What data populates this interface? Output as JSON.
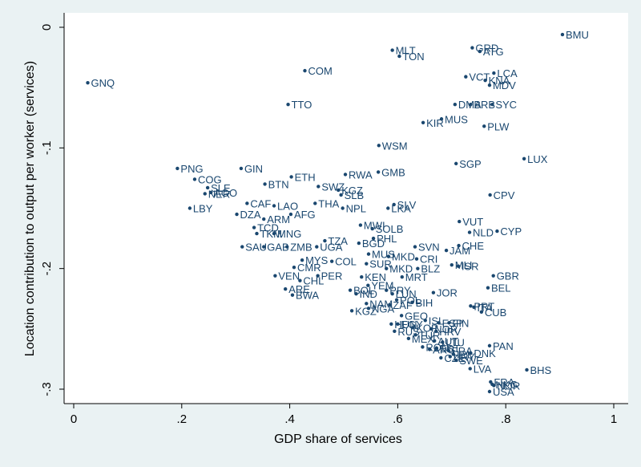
{
  "chart_data": {
    "type": "scatter",
    "title": "",
    "xlabel": "GDP share of services",
    "ylabel": "Location contribution to output per worker (services)",
    "xlim": [
      0,
      1
    ],
    "ylim": [
      -0.3,
      0
    ],
    "xticks": [
      0,
      0.2,
      0.4,
      0.6,
      0.8,
      1
    ],
    "xtick_labels": [
      "0",
      ".2",
      ".4",
      ".6",
      ".8",
      "1"
    ],
    "yticks": [
      0,
      -0.1,
      -0.2,
      -0.3
    ],
    "ytick_labels": [
      "0",
      "-.1",
      "-.2",
      "-.3"
    ],
    "grid": false,
    "colors": {
      "background": "#eaf2f3",
      "plot_area": "#ffffff",
      "marker": "#1a476f"
    },
    "points": [
      {
        "label": "BMU",
        "x": 0.905,
        "y": -0.006
      },
      {
        "label": "GRD",
        "x": 0.738,
        "y": -0.017
      },
      {
        "label": "ATG",
        "x": 0.752,
        "y": -0.02
      },
      {
        "label": "MLT",
        "x": 0.59,
        "y": -0.019
      },
      {
        "label": "TON",
        "x": 0.603,
        "y": -0.024
      },
      {
        "label": "LCA",
        "x": 0.778,
        "y": -0.038
      },
      {
        "label": "VCT",
        "x": 0.726,
        "y": -0.041
      },
      {
        "label": "KNA",
        "x": 0.762,
        "y": -0.044
      },
      {
        "label": "MDV",
        "x": 0.77,
        "y": -0.048
      },
      {
        "label": "COM",
        "x": 0.428,
        "y": -0.036
      },
      {
        "label": "GNQ",
        "x": 0.026,
        "y": -0.046
      },
      {
        "label": "TTO",
        "x": 0.397,
        "y": -0.064
      },
      {
        "label": "DMA",
        "x": 0.706,
        "y": -0.064
      },
      {
        "label": "BRB",
        "x": 0.735,
        "y": -0.064
      },
      {
        "label": "SYC",
        "x": 0.775,
        "y": -0.064
      },
      {
        "label": "MUS",
        "x": 0.681,
        "y": -0.076
      },
      {
        "label": "KIR",
        "x": 0.647,
        "y": -0.079
      },
      {
        "label": "PLW",
        "x": 0.76,
        "y": -0.082
      },
      {
        "label": "WSM",
        "x": 0.565,
        "y": -0.098
      },
      {
        "label": "SGP",
        "x": 0.708,
        "y": -0.113
      },
      {
        "label": "LUX",
        "x": 0.834,
        "y": -0.109
      },
      {
        "label": "PNG",
        "x": 0.192,
        "y": -0.117
      },
      {
        "label": "GIN",
        "x": 0.31,
        "y": -0.117
      },
      {
        "label": "ETH",
        "x": 0.403,
        "y": -0.124
      },
      {
        "label": "RWA",
        "x": 0.503,
        "y": -0.122
      },
      {
        "label": "GMB",
        "x": 0.564,
        "y": -0.12
      },
      {
        "label": "COG",
        "x": 0.224,
        "y": -0.126
      },
      {
        "label": "BTN",
        "x": 0.354,
        "y": -0.13
      },
      {
        "label": "SWZ",
        "x": 0.453,
        "y": -0.132
      },
      {
        "label": "KGZ",
        "x": 0.49,
        "y": -0.135
      },
      {
        "label": "SLE",
        "x": 0.248,
        "y": -0.133
      },
      {
        "label": "AGO",
        "x": 0.254,
        "y": -0.137
      },
      {
        "label": "NER",
        "x": 0.243,
        "y": -0.138
      },
      {
        "label": "SLB",
        "x": 0.495,
        "y": -0.139
      },
      {
        "label": "CPV",
        "x": 0.771,
        "y": -0.139
      },
      {
        "label": "CAF",
        "x": 0.321,
        "y": -0.146
      },
      {
        "label": "THA",
        "x": 0.447,
        "y": -0.146
      },
      {
        "label": "SLV",
        "x": 0.593,
        "y": -0.147
      },
      {
        "label": "LAO",
        "x": 0.371,
        "y": -0.148
      },
      {
        "label": "NPL",
        "x": 0.498,
        "y": -0.15
      },
      {
        "label": "LKA",
        "x": 0.582,
        "y": -0.15
      },
      {
        "label": "LBY",
        "x": 0.215,
        "y": -0.15
      },
      {
        "label": "DZA",
        "x": 0.302,
        "y": -0.155
      },
      {
        "label": "AFG",
        "x": 0.402,
        "y": -0.155
      },
      {
        "label": "ARM",
        "x": 0.352,
        "y": -0.159
      },
      {
        "label": "VUT",
        "x": 0.714,
        "y": -0.161
      },
      {
        "label": "MWI",
        "x": 0.531,
        "y": -0.164
      },
      {
        "label": "TCD",
        "x": 0.334,
        "y": -0.166
      },
      {
        "label": "SOLB",
        "x": 0.553,
        "y": -0.167
      },
      {
        "label": "CYP",
        "x": 0.784,
        "y": -0.169
      },
      {
        "label": "NLD",
        "x": 0.733,
        "y": -0.17
      },
      {
        "label": "TKM",
        "x": 0.339,
        "y": -0.171
      },
      {
        "label": "MNG",
        "x": 0.371,
        "y": -0.171
      },
      {
        "label": "PHL",
        "x": 0.555,
        "y": -0.175
      },
      {
        "label": "TZA",
        "x": 0.465,
        "y": -0.177
      },
      {
        "label": "BGD",
        "x": 0.528,
        "y": -0.179
      },
      {
        "label": "CHE",
        "x": 0.713,
        "y": -0.181
      },
      {
        "label": "SAU",
        "x": 0.312,
        "y": -0.182
      },
      {
        "label": "GAB",
        "x": 0.352,
        "y": -0.182
      },
      {
        "label": "ZMB",
        "x": 0.395,
        "y": -0.182
      },
      {
        "label": "UGA",
        "x": 0.45,
        "y": -0.182
      },
      {
        "label": "SVN",
        "x": 0.632,
        "y": -0.182
      },
      {
        "label": "JAM",
        "x": 0.69,
        "y": -0.185
      },
      {
        "label": "MUS",
        "x": 0.546,
        "y": -0.188
      },
      {
        "label": "MKD",
        "x": 0.583,
        "y": -0.19
      },
      {
        "label": "CRI",
        "x": 0.635,
        "y": -0.192
      },
      {
        "label": "MYS",
        "x": 0.423,
        "y": -0.193
      },
      {
        "label": "COL",
        "x": 0.478,
        "y": -0.194
      },
      {
        "label": "SUR",
        "x": 0.542,
        "y": -0.196
      },
      {
        "label": "MLI",
        "x": 0.7,
        "y": -0.197
      },
      {
        "label": "ISR",
        "x": 0.712,
        "y": -0.198
      },
      {
        "label": "CMR",
        "x": 0.408,
        "y": -0.199
      },
      {
        "label": "MKD",
        "x": 0.579,
        "y": -0.2
      },
      {
        "label": "BLZ",
        "x": 0.637,
        "y": -0.2
      },
      {
        "label": "GBR",
        "x": 0.777,
        "y": -0.206
      },
      {
        "label": "VEN",
        "x": 0.373,
        "y": -0.206
      },
      {
        "label": "PER",
        "x": 0.452,
        "y": -0.206
      },
      {
        "label": "KEN",
        "x": 0.533,
        "y": -0.207
      },
      {
        "label": "MRT",
        "x": 0.608,
        "y": -0.207
      },
      {
        "label": "CHL",
        "x": 0.419,
        "y": -0.21
      },
      {
        "label": "YEM",
        "x": 0.545,
        "y": -0.214
      },
      {
        "label": "BEL",
        "x": 0.767,
        "y": -0.216
      },
      {
        "label": "ARE",
        "x": 0.392,
        "y": -0.217
      },
      {
        "label": "BOL",
        "x": 0.512,
        "y": -0.218
      },
      {
        "label": "PRY",
        "x": 0.579,
        "y": -0.218
      },
      {
        "label": "JOR",
        "x": 0.666,
        "y": -0.22
      },
      {
        "label": "BWA",
        "x": 0.405,
        "y": -0.222
      },
      {
        "label": "IND",
        "x": 0.523,
        "y": -0.221
      },
      {
        "label": "LUN",
        "x": 0.59,
        "y": -0.221
      },
      {
        "label": "POL",
        "x": 0.598,
        "y": -0.226
      },
      {
        "label": "BIH",
        "x": 0.627,
        "y": -0.228
      },
      {
        "label": "NAM",
        "x": 0.542,
        "y": -0.229
      },
      {
        "label": "ZAF",
        "x": 0.585,
        "y": -0.23
      },
      {
        "label": "NGA",
        "x": 0.546,
        "y": -0.233
      },
      {
        "label": "PRT",
        "x": 0.735,
        "y": -0.231
      },
      {
        "label": "ITA",
        "x": 0.741,
        "y": -0.232
      },
      {
        "label": "KGZ",
        "x": 0.515,
        "y": -0.235
      },
      {
        "label": "CUB",
        "x": 0.755,
        "y": -0.236
      },
      {
        "label": "GEO",
        "x": 0.607,
        "y": -0.239
      },
      {
        "label": "ISL",
        "x": 0.651,
        "y": -0.243
      },
      {
        "label": "ESP",
        "x": 0.676,
        "y": -0.245
      },
      {
        "label": "FIN",
        "x": 0.695,
        "y": -0.245
      },
      {
        "label": "HUN",
        "x": 0.588,
        "y": -0.246
      },
      {
        "label": "EGY",
        "x": 0.6,
        "y": -0.246
      },
      {
        "label": "KOR",
        "x": 0.628,
        "y": -0.249
      },
      {
        "label": "NOR",
        "x": 0.662,
        "y": -0.25
      },
      {
        "label": "HRV",
        "x": 0.671,
        "y": -0.252
      },
      {
        "label": "RUS",
        "x": 0.594,
        "y": -0.252
      },
      {
        "label": "TUR",
        "x": 0.633,
        "y": -0.255
      },
      {
        "label": "MEX",
        "x": 0.62,
        "y": -0.258
      },
      {
        "label": "AUT",
        "x": 0.668,
        "y": -0.26
      },
      {
        "label": "LTU",
        "x": 0.683,
        "y": -0.261
      },
      {
        "label": "ROU",
        "x": 0.646,
        "y": -0.265
      },
      {
        "label": "EST",
        "x": 0.672,
        "y": -0.266
      },
      {
        "label": "ARG",
        "x": 0.659,
        "y": -0.267
      },
      {
        "label": "FRA",
        "x": 0.694,
        "y": -0.268
      },
      {
        "label": "DNK",
        "x": 0.735,
        "y": -0.27
      },
      {
        "label": "PAN",
        "x": 0.77,
        "y": -0.264
      },
      {
        "label": "IRL",
        "x": 0.703,
        "y": -0.271
      },
      {
        "label": "URY",
        "x": 0.697,
        "y": -0.273
      },
      {
        "label": "SWE",
        "x": 0.708,
        "y": -0.276
      },
      {
        "label": "CZE",
        "x": 0.68,
        "y": -0.274
      },
      {
        "label": "LVA",
        "x": 0.734,
        "y": -0.283
      },
      {
        "label": "BHS",
        "x": 0.839,
        "y": -0.284
      },
      {
        "label": "FRA",
        "x": 0.772,
        "y": -0.294
      },
      {
        "label": "HKG",
        "x": 0.775,
        "y": -0.296
      },
      {
        "label": "NOR",
        "x": 0.778,
        "y": -0.297
      },
      {
        "label": "USA",
        "x": 0.77,
        "y": -0.302
      }
    ]
  }
}
